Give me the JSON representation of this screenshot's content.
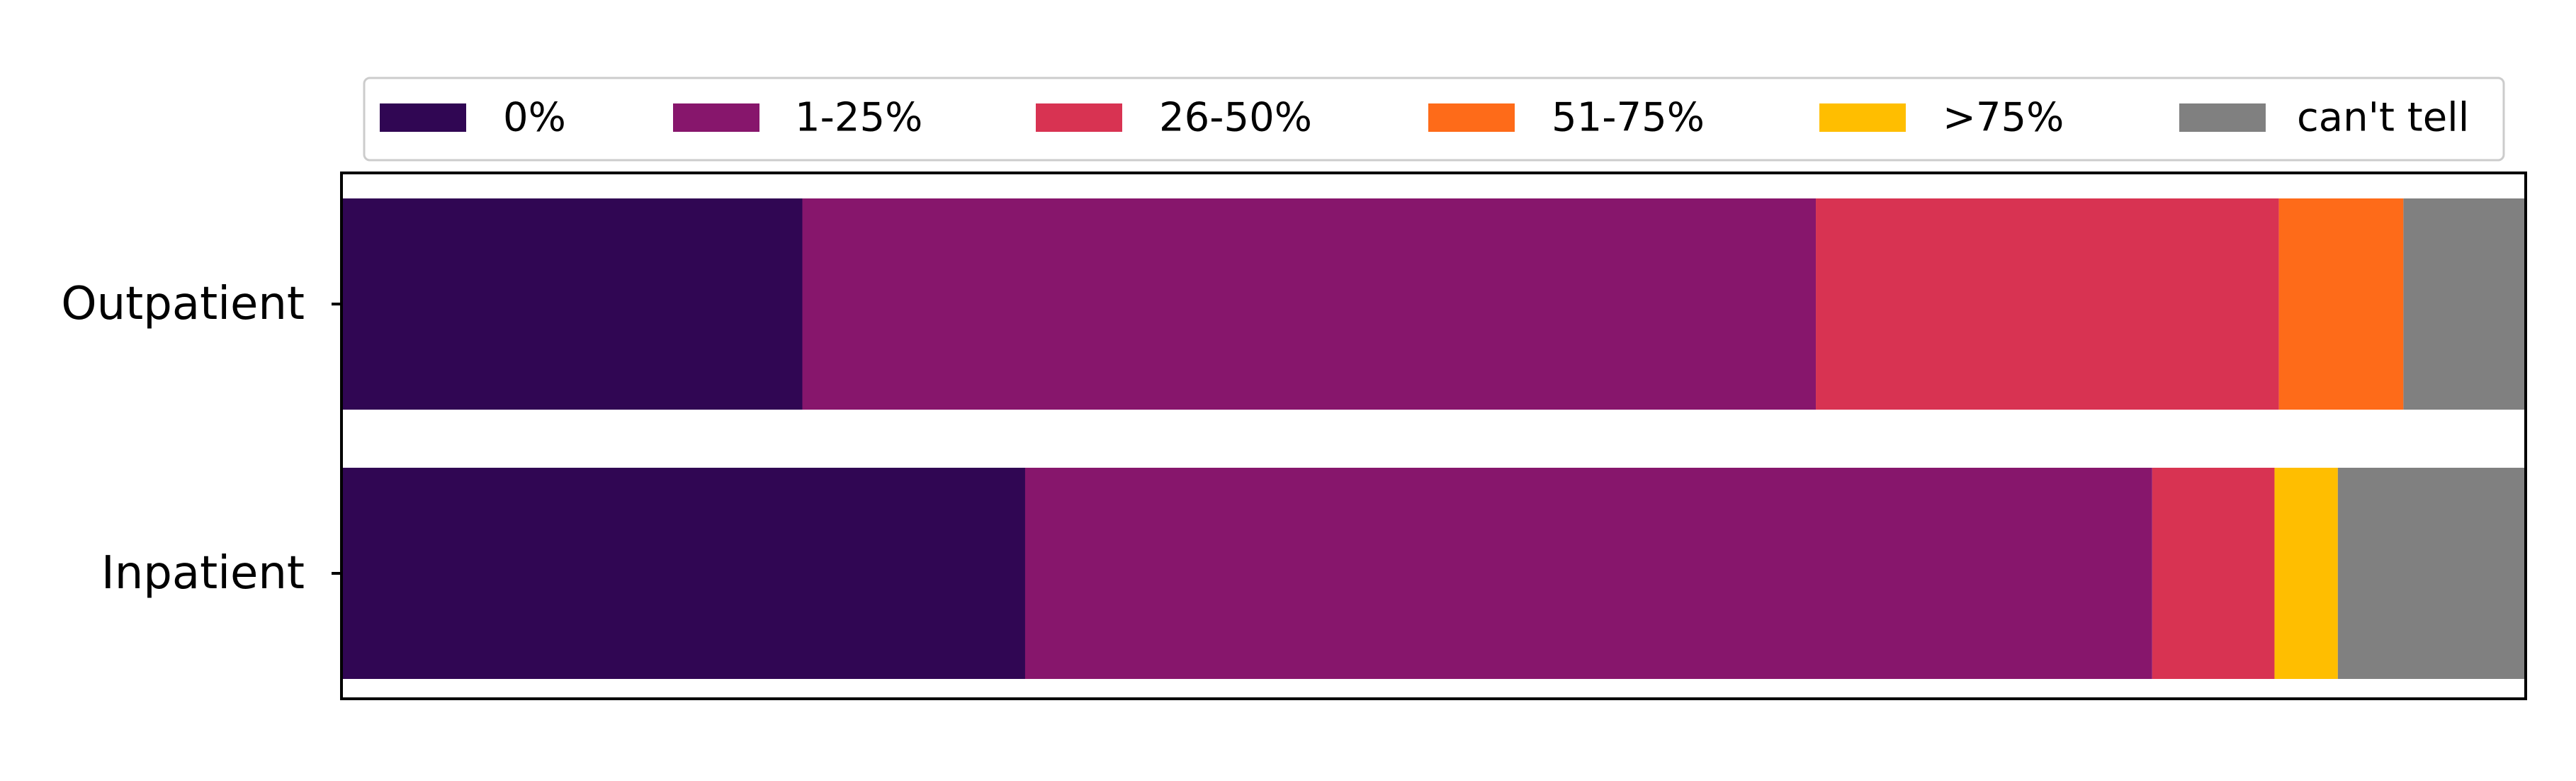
{
  "chart_data": {
    "type": "bar",
    "orientation": "horizontal",
    "stacked": true,
    "title": "",
    "xlabel": "",
    "ylabel": "",
    "categories": [
      "Outpatient",
      "Inpatient"
    ],
    "series": [
      {
        "name": "0%",
        "color": "#300653",
        "values": [
          21.1,
          31.3
        ]
      },
      {
        "name": "1-25%",
        "color": "#87166c",
        "values": [
          46.4,
          51.6
        ]
      },
      {
        "name": "26-50%",
        "color": "#d83352",
        "values": [
          21.2,
          5.6
        ]
      },
      {
        "name": "51-75%",
        "color": "#fe6b19",
        "values": [
          5.7,
          0
        ]
      },
      {
        "name": ">75%",
        "color": "#ffbe00",
        "values": [
          0,
          2.9
        ]
      },
      {
        "name": "can't tell",
        "color": "#808080",
        "values": [
          5.6,
          8.6
        ]
      }
    ],
    "xlim": [
      0,
      100
    ],
    "legend_position": "top",
    "grid": false
  }
}
